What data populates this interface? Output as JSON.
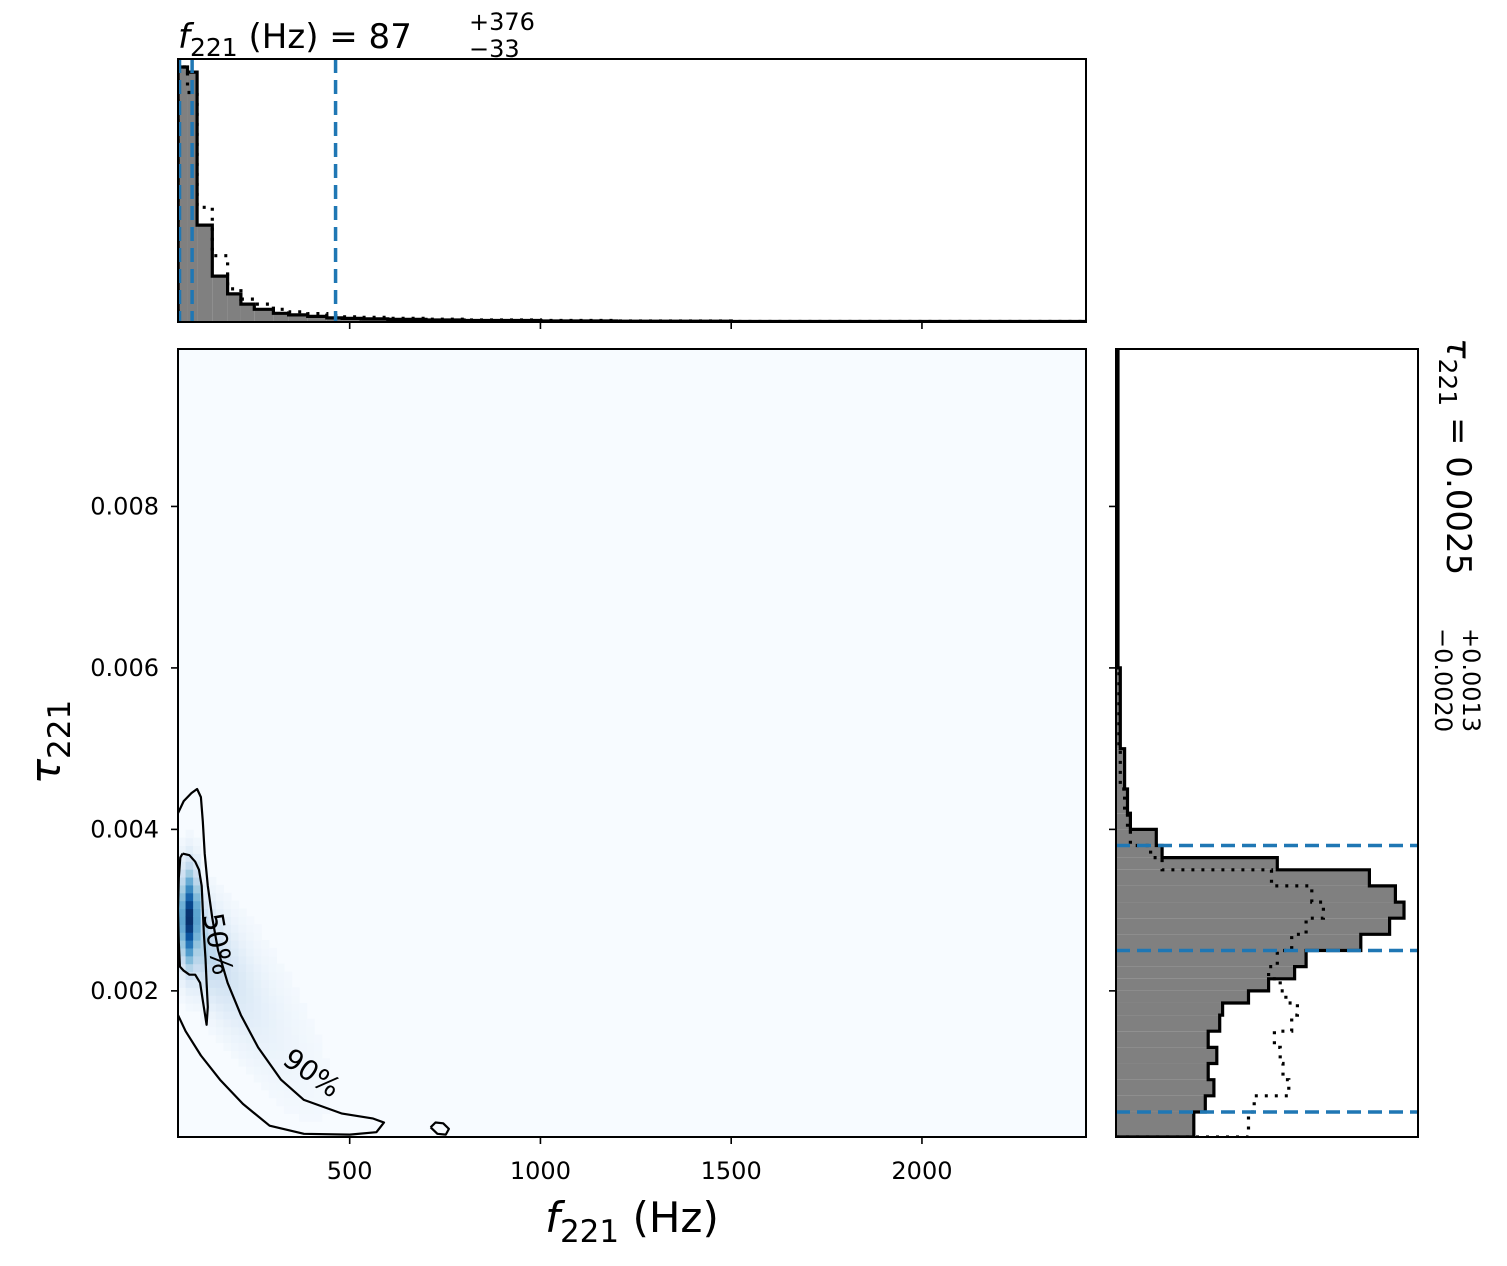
{
  "chart_data": {
    "type": "corner",
    "top_marginal": {
      "type": "histogram",
      "title_main": "f",
      "title_sub": "221",
      "title_rest": " (Hz) = 87",
      "title_sup": "+376",
      "title_inf": "−33",
      "x_range": [
        50,
        2430
      ],
      "bins_x": [
        50,
        75,
        100,
        140,
        180,
        215,
        250,
        300,
        340,
        390,
        440,
        480,
        530,
        600,
        700,
        800,
        1000,
        1200,
        1500,
        2430
      ],
      "solid_density": [
        1.0,
        0.98,
        0.38,
        0.18,
        0.11,
        0.07,
        0.05,
        0.034,
        0.028,
        0.022,
        0.016,
        0.014,
        0.012,
        0.01,
        0.008,
        0.006,
        0.004,
        0.003,
        0.002
      ],
      "dotted_density": [
        1.0,
        0.9,
        0.45,
        0.26,
        0.13,
        0.09,
        0.07,
        0.05,
        0.04,
        0.033,
        0.025,
        0.02,
        0.018,
        0.014,
        0.011,
        0.008,
        0.006,
        0.004,
        0.002
      ],
      "quantile_lines_x": [
        54,
        87,
        463
      ],
      "fill_color": "#808080",
      "quantile_color": "#1f77b4"
    },
    "joint": {
      "type": "heatmap",
      "x_range": [
        50,
        2430
      ],
      "y_range": [
        0.00019,
        0.00995
      ],
      "x_ticks": [
        500,
        1000,
        1500,
        2000
      ],
      "x_tick_labels": [
        "500",
        "1000",
        "1500",
        "2000"
      ],
      "y_ticks": [
        0.002,
        0.004,
        0.006,
        0.008
      ],
      "y_tick_labels": [
        "0.002",
        "0.004",
        "0.006",
        "0.008"
      ],
      "xlabel_main": "f",
      "xlabel_sub": "221",
      "xlabel_rest": " (Hz)",
      "ylabel_main": "τ",
      "ylabel_sub": "221",
      "colormap": "Blues",
      "peak": {
        "f": 80,
        "tau": 0.0029
      },
      "contour_labels": [
        "50%",
        "90%"
      ],
      "contour_50": [
        [
          62,
          0.0037
        ],
        [
          80,
          0.00368
        ],
        [
          95,
          0.0036
        ],
        [
          105,
          0.0035
        ],
        [
          112,
          0.0033
        ],
        [
          115,
          0.003
        ],
        [
          118,
          0.0027
        ],
        [
          122,
          0.0024
        ],
        [
          125,
          0.0021
        ],
        [
          128,
          0.0018
        ],
        [
          125,
          0.00158
        ],
        [
          116,
          0.00185
        ],
        [
          108,
          0.0021
        ],
        [
          95,
          0.0022
        ],
        [
          80,
          0.0022
        ],
        [
          65,
          0.00225
        ],
        [
          55,
          0.0023
        ],
        [
          52,
          0.0026
        ],
        [
          50,
          0.003
        ],
        [
          52,
          0.0034
        ],
        [
          56,
          0.00365
        ],
        [
          62,
          0.0037
        ]
      ],
      "contour_90": [
        [
          50,
          0.0042
        ],
        [
          65,
          0.00435
        ],
        [
          85,
          0.00445
        ],
        [
          100,
          0.0045
        ],
        [
          110,
          0.0044
        ],
        [
          115,
          0.0041
        ],
        [
          120,
          0.0037
        ],
        [
          128,
          0.0033
        ],
        [
          140,
          0.0029
        ],
        [
          155,
          0.0025
        ],
        [
          180,
          0.0021
        ],
        [
          215,
          0.0017
        ],
        [
          260,
          0.0013
        ],
        [
          320,
          0.0009
        ],
        [
          380,
          0.00065
        ],
        [
          480,
          0.00048
        ],
        [
          560,
          0.00042
        ],
        [
          590,
          0.00037
        ],
        [
          570,
          0.00025
        ],
        [
          500,
          0.00022
        ],
        [
          380,
          0.00023
        ],
        [
          290,
          0.00033
        ],
        [
          220,
          0.0006
        ],
        [
          160,
          0.0009
        ],
        [
          110,
          0.0012
        ],
        [
          70,
          0.0015
        ],
        [
          50,
          0.0017
        ]
      ],
      "contour_90_island": [
        [
          712,
          0.00031
        ],
        [
          725,
          0.00037
        ],
        [
          745,
          0.00036
        ],
        [
          760,
          0.00029
        ],
        [
          752,
          0.00022
        ],
        [
          730,
          0.00023
        ],
        [
          712,
          0.00031
        ]
      ]
    },
    "right_marginal": {
      "type": "histogram",
      "title_main": "τ",
      "title_sub": "221",
      "title_rest": " = 0.0025",
      "title_sup": "+0.0013",
      "title_inf": "−0.0020",
      "y_range": [
        0.00019,
        0.00995
      ],
      "bins_y": [
        0.00019,
        0.0005,
        0.0007,
        0.0009,
        0.0011,
        0.0013,
        0.0015,
        0.0017,
        0.00185,
        0.002,
        0.00215,
        0.0023,
        0.0025,
        0.0027,
        0.0029,
        0.0031,
        0.0033,
        0.0035,
        0.00365,
        0.0038,
        0.004,
        0.0042,
        0.0045,
        0.005,
        0.006,
        0.00995
      ],
      "solid_density": [
        0.27,
        0.31,
        0.34,
        0.32,
        0.35,
        0.32,
        0.36,
        0.37,
        0.46,
        0.53,
        0.62,
        0.66,
        0.85,
        0.95,
        1.0,
        0.97,
        0.88,
        0.56,
        0.16,
        0.14,
        0.05,
        0.04,
        0.03,
        0.015,
        0.007
      ],
      "dotted_density": [
        0.46,
        0.48,
        0.6,
        0.58,
        0.57,
        0.55,
        0.61,
        0.63,
        0.59,
        0.57,
        0.53,
        0.56,
        0.61,
        0.66,
        0.72,
        0.68,
        0.54,
        0.16,
        0.12,
        0.05,
        0.04,
        0.03,
        0.015,
        0.01,
        0.005
      ],
      "quantile_lines_y": [
        0.0005,
        0.0025,
        0.0038
      ],
      "fill_color": "#808080",
      "quantile_color": "#1f77b4"
    }
  }
}
